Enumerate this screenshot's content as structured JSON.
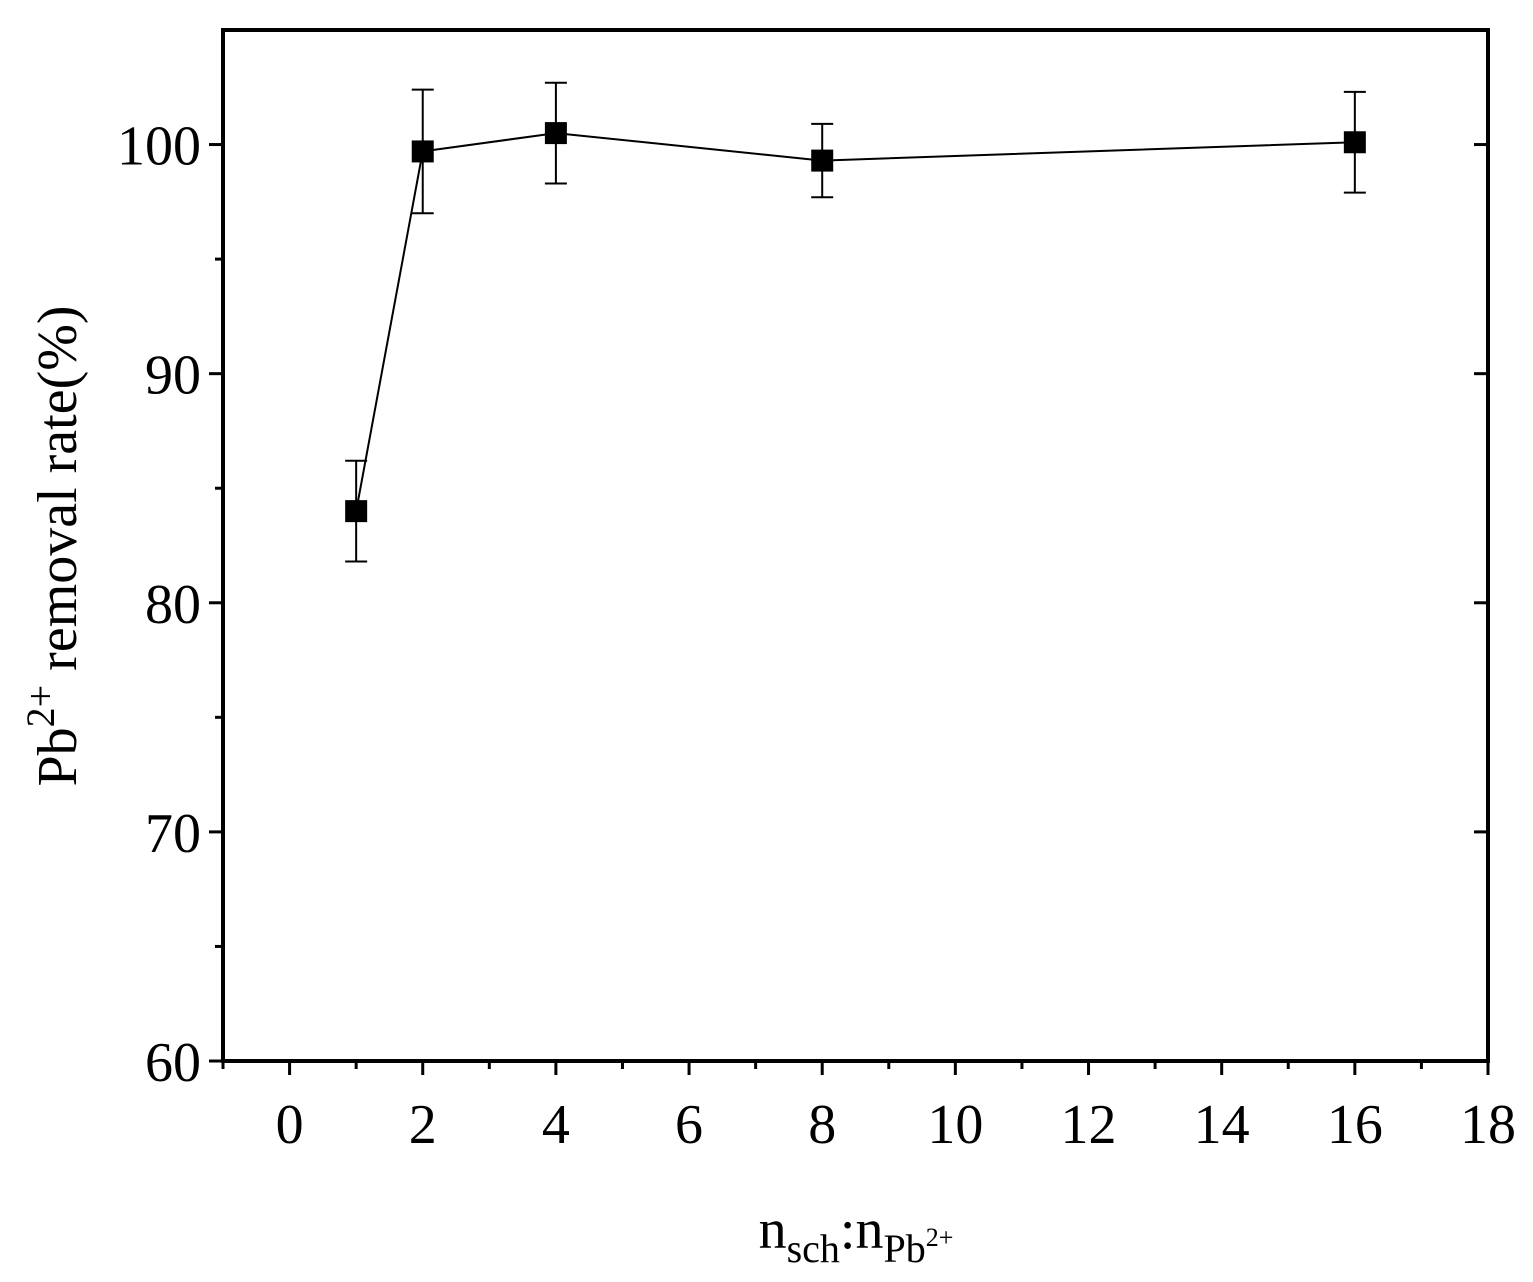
{
  "chart_data": {
    "type": "scatter",
    "title": "",
    "xlabel": {
      "base": "n",
      "sub1": "sch",
      "sep": ":n",
      "sub2": "Pb",
      "sub2_sup": "2+"
    },
    "ylabel": {
      "pre": "Pb",
      "sup": "2+",
      "post": " removal rate(%)"
    },
    "xlim": [
      -1,
      18
    ],
    "ylim": [
      60,
      105
    ],
    "x_ticks": [
      0,
      2,
      4,
      6,
      8,
      10,
      12,
      14,
      16,
      18
    ],
    "x_tick_labels": [
      "0",
      "2",
      "4",
      "6",
      "8",
      "10",
      "12",
      "14",
      "16",
      "18"
    ],
    "y_ticks": [
      60,
      70,
      80,
      90,
      100
    ],
    "y_tick_labels": [
      "60",
      "70",
      "80",
      "90",
      "100"
    ],
    "grid": false,
    "legend": "none",
    "series": [
      {
        "marker": "square",
        "connected": true,
        "color": "#000000",
        "x": [
          1,
          2,
          4,
          8,
          16
        ],
        "y": [
          84.0,
          99.7,
          100.5,
          99.3,
          100.1
        ],
        "error": [
          2.2,
          2.7,
          2.2,
          1.6,
          2.2
        ]
      }
    ]
  }
}
